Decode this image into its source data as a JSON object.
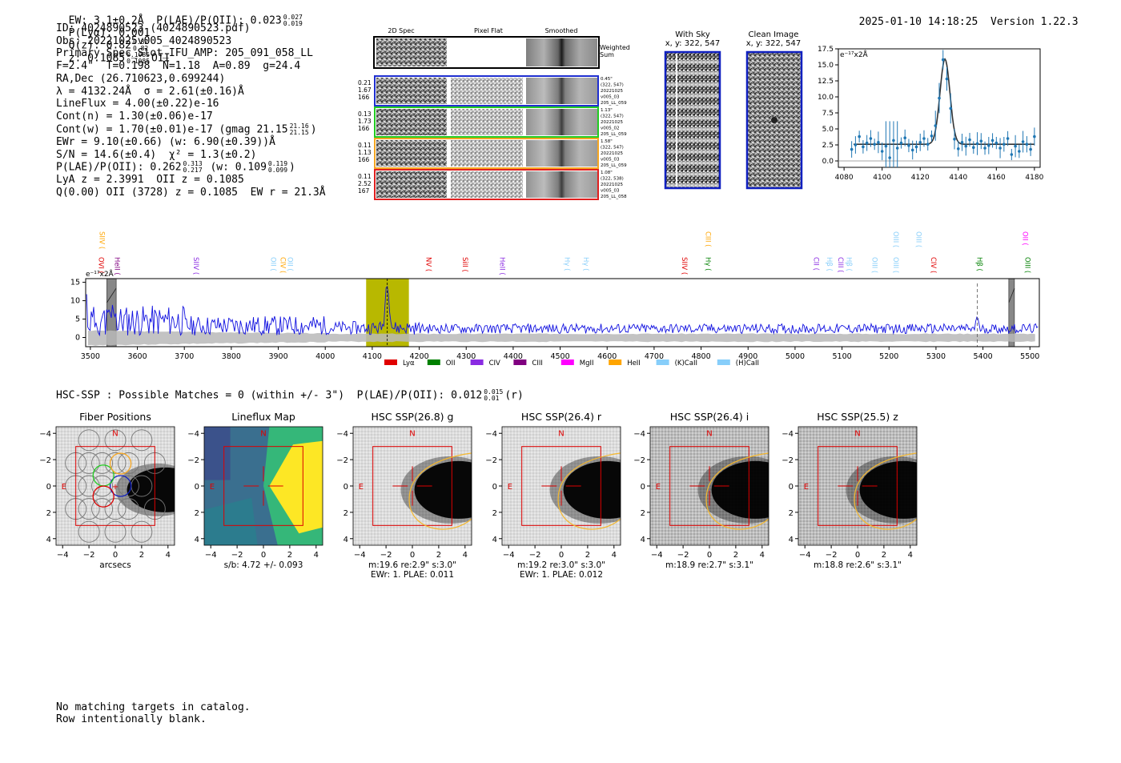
{
  "header": {
    "left": "EW: 3.1±0.2Å  P(LAE)/P(OII): 0.023",
    "left_sup": "0.027",
    "left_sub": "0.019",
    "plya": "P(Lyα): 0.001",
    "qz": "Q(z): 0.82",
    "qz_sup": "0.82",
    "qz_sub": "0.82",
    "z": "z: 0.1085",
    "z_sup": "0.1085",
    "z_sub": "0.1085",
    "z_line": "OII",
    "datetime": "2025-01-10 14:18:25",
    "version": "Version 1.22.3"
  },
  "info": {
    "id": "ID: 4024890523 (4024890523.pdf)",
    "obs": "Obs: 20221025v005_4024890523",
    "primary": "Primary Spec_Slot_IFU_AMP: 205_091_058_LL",
    "fiber": "F=2.4\"  T=0.198  N=1.18  A=0.89  g=24.4",
    "radec": "RA,Dec (26.710623,0.699244)",
    "lambda": "λ = 4132.24Å  σ = 2.61(±0.16)Å",
    "lineflux": "LineFlux = 4.00(±0.22)e-16",
    "contn": "Cont(n) = 1.30(±0.06)e-17",
    "contw": "Cont(w) = 1.70(±0.01)e-17 (gmag 21.15",
    "contw_sup": "21.16",
    "contw_sub": "21.15",
    "contw_end": ")",
    "ewr": "EWr = 9.10(±0.66) (w: 6.90(±0.39))Å",
    "sn": "S/N = 14.6(±0.4)  χ² = 1.3(±0.2)",
    "plae": "P(LAE)/P(OII): 0.262",
    "plae_sup": "0.313",
    "plae_sub": "0.217",
    "plae_w": "(w: 0.109",
    "plae_w_sup": "0.119",
    "plae_w_sub": "0.099",
    "plae_w_end": ")",
    "lya": "LyA z = 2.3991  OII z = 0.1085",
    "q": "Q(0.00) OII (3728) z = 0.1085  EW r = 21.3Å"
  },
  "spec2d": {
    "col_titles": [
      "2D Spec",
      "Pixel Flat",
      "Smoothed"
    ],
    "weighted": "Weighted Sum",
    "rows": [
      {
        "left": [
          "0.21",
          "1.67",
          "166"
        ],
        "right": [
          "0.45\"",
          "(322, 547)",
          "20221025",
          "v005_03",
          "205_LL_059"
        ],
        "color": "#1f2fd0"
      },
      {
        "left": [
          "0.13",
          "1.73",
          "166"
        ],
        "right": [
          "1.13\"",
          "(322, 547)",
          "20221025",
          "v005_02",
          "205_LL_059"
        ],
        "color": "#22cc22"
      },
      {
        "left": [
          "0.11",
          "1.13",
          "166"
        ],
        "right": [
          "1.58\"",
          "(322, 547)",
          "20221025",
          "v005_03",
          "205_LL_059"
        ],
        "color": "#f5a623"
      },
      {
        "left": [
          "0.11",
          "2.52",
          "167"
        ],
        "right": [
          "1.08\"",
          "(322, 538)",
          "20221025",
          "v005_03",
          "205_LL_058"
        ],
        "color": "#e02020"
      }
    ]
  },
  "cutouts": {
    "sky_title": "With Sky",
    "sky_sub": "x, y: 322, 547",
    "clean_title": "Clean Image",
    "clean_sub": "x, y: 322, 547"
  },
  "colors": {
    "spectrum": "#1010e0",
    "fit": "#1f77b4",
    "highlight": "#b8b800",
    "red": "#dd0000",
    "gold": "#f5b82e"
  },
  "chart_data": [
    {
      "type": "scatter",
      "name": "line-fit",
      "ylabel": "e⁻¹⁷x2Å",
      "xlim": [
        4077,
        4183
      ],
      "ylim": [
        -1,
        17.5
      ],
      "xticks": [
        4080,
        4100,
        4120,
        4140,
        4160,
        4180
      ],
      "yticks": [
        0.0,
        2.5,
        5.0,
        7.5,
        10.0,
        12.5,
        15.0,
        17.5
      ],
      "x": [
        4084,
        4086,
        4088,
        4090,
        4092,
        4094,
        4096,
        4098,
        4100,
        4102,
        4104,
        4106,
        4108,
        4110,
        4112,
        4114,
        4116,
        4118,
        4120,
        4122,
        4124,
        4126,
        4128,
        4130,
        4132,
        4134,
        4136,
        4138,
        4140,
        4142,
        4144,
        4146,
        4148,
        4150,
        4152,
        4154,
        4156,
        4158,
        4160,
        4162,
        4164,
        4166,
        4168,
        4170,
        4172,
        4174,
        4176,
        4178,
        4180
      ],
      "y": [
        1.8,
        2.5,
        3.8,
        2.2,
        2.8,
        3.5,
        2.6,
        2.9,
        1.5,
        2.3,
        0.5,
        3.2,
        2.0,
        2.8,
        3.6,
        2.4,
        1.7,
        2.2,
        2.9,
        3.5,
        2.6,
        3.9,
        5.5,
        9.8,
        15.8,
        12.8,
        8.2,
        3.4,
        1.9,
        2.9,
        2.3,
        3.3,
        2.1,
        2.7,
        3.1,
        2.0,
        2.4,
        3.2,
        2.8,
        2.0,
        2.6,
        3.5,
        1.0,
        2.3,
        1.5,
        3.0,
        2.6,
        1.8,
        3.8
      ],
      "fit_center": 4133,
      "fit_sigma": 2.61,
      "fit_amp": 13.3,
      "fit_cont": 2.6
    },
    {
      "type": "line",
      "name": "full-spectrum",
      "ylabel": "e⁻¹⁷x2Å",
      "xlim": [
        3490,
        5520
      ],
      "ylim": [
        -2.5,
        16
      ],
      "xticks": [
        3500,
        3600,
        3700,
        3800,
        3900,
        4000,
        4100,
        4200,
        4300,
        4400,
        4500,
        4600,
        4700,
        4800,
        4900,
        5000,
        5100,
        5200,
        5300,
        5400,
        5500
      ],
      "yticks": [
        0,
        5,
        10,
        15
      ],
      "highlight_range": [
        4087,
        4178
      ],
      "peak": 4132,
      "masked": [
        [
          3535,
          3555
        ],
        [
          5455,
          5467
        ]
      ],
      "dashed_line": 5388,
      "legend": [
        {
          "label": "Lyα",
          "color": "#e00000"
        },
        {
          "label": "OII",
          "color": "#008000"
        },
        {
          "label": "CIV",
          "color": "#8a2be2"
        },
        {
          "label": "CIII",
          "color": "#800080"
        },
        {
          "label": "MgII",
          "color": "#ff00ff"
        },
        {
          "label": "HeII",
          "color": "#ffa500"
        },
        {
          "label": "(K)CaII",
          "color": "#87cefa"
        },
        {
          "label": "(H)CaII",
          "color": "#87cefa"
        }
      ],
      "lines_top": [
        {
          "label": "SIIV",
          "x": 3520,
          "color": "#ffa500"
        },
        {
          "label": "CIII",
          "x": 4810,
          "color": "#ffa500"
        },
        {
          "label": "OIII",
          "x": 5210,
          "color": "#87cefa"
        },
        {
          "label": "OIII",
          "x": 5258,
          "color": "#87cefa"
        },
        {
          "label": "OII",
          "x": 5485,
          "color": "#ff00ff"
        }
      ],
      "lines_mid": [
        {
          "label": "OVI",
          "x": 3518,
          "color": "#e00000"
        },
        {
          "label": "HeII",
          "x": 3552,
          "color": "#800080"
        },
        {
          "label": "SIIV",
          "x": 3720,
          "color": "#8a2be2"
        },
        {
          "label": "OII",
          "x": 3885,
          "color": "#87cefa"
        },
        {
          "label": "CIV",
          "x": 3905,
          "color": "#ffa500"
        },
        {
          "label": "OII",
          "x": 3920,
          "color": "#87cefa"
        },
        {
          "label": "NV",
          "x": 4215,
          "color": "#e00000"
        },
        {
          "label": "SiII",
          "x": 4293,
          "color": "#e00000"
        },
        {
          "label": "HeII",
          "x": 4372,
          "color": "#8a2be2"
        },
        {
          "label": "Hγ",
          "x": 4510,
          "color": "#87cefa"
        },
        {
          "label": "Hγ",
          "x": 4550,
          "color": "#87cefa"
        },
        {
          "label": "SIIV",
          "x": 4760,
          "color": "#e00000"
        },
        {
          "label": "Hγ",
          "x": 4810,
          "color": "#008000"
        },
        {
          "label": "CII",
          "x": 5040,
          "color": "#8a2be2"
        },
        {
          "label": "Hβ",
          "x": 5068,
          "color": "#87cefa"
        },
        {
          "label": "CIII",
          "x": 5092,
          "color": "#8a2be2"
        },
        {
          "label": "Hβ",
          "x": 5110,
          "color": "#87cefa"
        },
        {
          "label": "OIII",
          "x": 5165,
          "color": "#87cefa"
        },
        {
          "label": "OIII",
          "x": 5210,
          "color": "#87cefa"
        },
        {
          "label": "CIV",
          "x": 5290,
          "color": "#e00000"
        },
        {
          "label": "Hβ",
          "x": 5388,
          "color": "#008000"
        },
        {
          "label": "OIII",
          "x": 5490,
          "color": "#008000"
        }
      ]
    }
  ],
  "hsc": {
    "title": "HSC-SSP : Possible Matches = 0 (within +/- 3\")  P(LAE)/P(OII): 0.012",
    "title_sup": "0.015",
    "title_sub": "0.01",
    "title_end": "(r)",
    "ticks": [
      "−4",
      "−2",
      "0",
      "2",
      "4"
    ],
    "ticks_y": [
      "4",
      "2",
      "0",
      "−2",
      "−4"
    ],
    "north": "N",
    "east": "E",
    "panels": [
      {
        "title": "Fiber Positions",
        "cap1": "arcsecs",
        "cap2": ""
      },
      {
        "title": "Lineflux Map",
        "cap1": "s/b: 4.72 +/- 0.093",
        "cap2": ""
      },
      {
        "title": "HSC SSP(26.8) g",
        "cap1": "m:19.6  re:2.9\"  s:3.0\"",
        "cap2": "EWr: 1. PLAE: 0.011"
      },
      {
        "title": "HSC SSP(26.4) r",
        "cap1": "m:19.2  re:3.0\"  s:3.0\"",
        "cap2": "EWr: 1. PLAE: 0.012"
      },
      {
        "title": "HSC SSP(26.4) i",
        "cap1": "m:18.9  re:2.7\"  s:3.1\"",
        "cap2": ""
      },
      {
        "title": "HSC SSP(25.5) z",
        "cap1": "m:18.8  re:2.6\"  s:3.1\"",
        "cap2": ""
      }
    ]
  },
  "footer": {
    "line1": "No matching targets in catalog.",
    "line2": "Row intentionally blank."
  }
}
